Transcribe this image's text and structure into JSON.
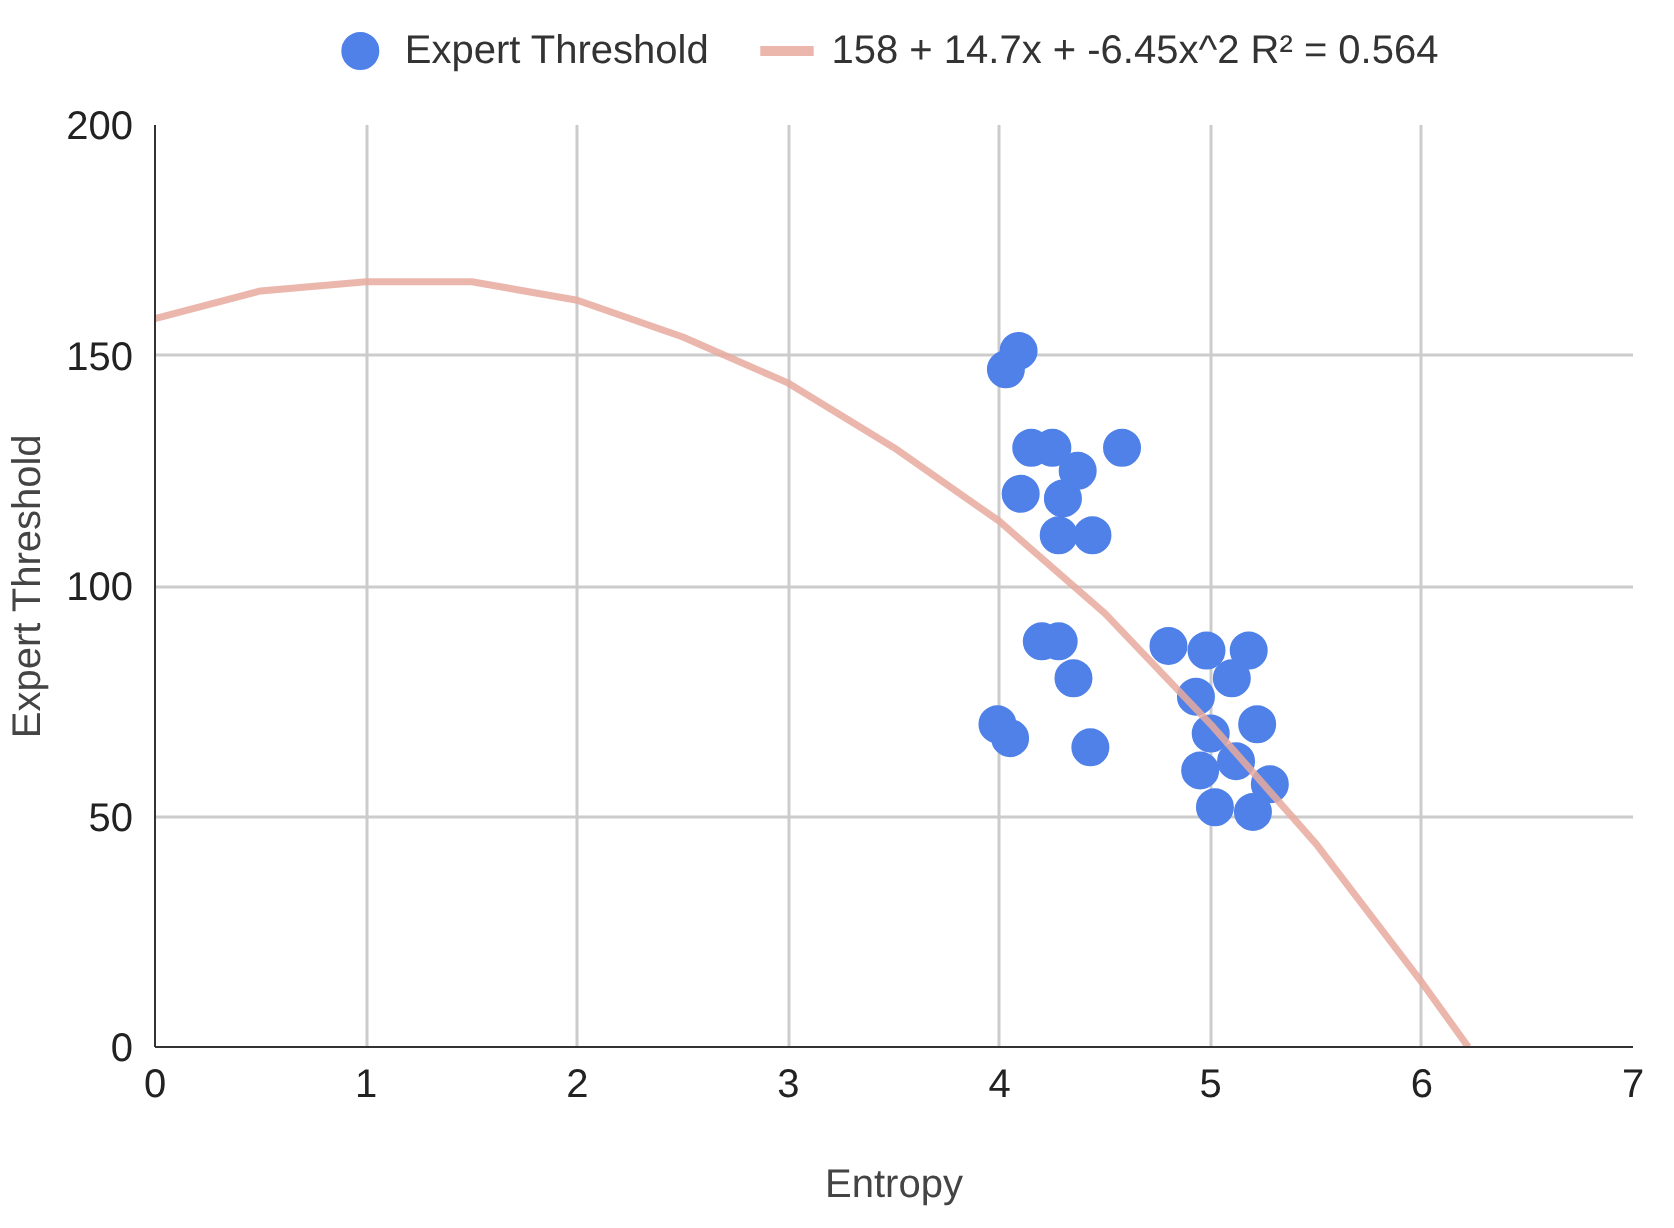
{
  "chart_data": {
    "type": "scatter",
    "xlabel": "Entropy",
    "ylabel": "Expert Threshold",
    "xlim": [
      0,
      7
    ],
    "ylim": [
      0,
      200
    ],
    "xticks": [
      0,
      1,
      2,
      3,
      4,
      5,
      6,
      7
    ],
    "yticks": [
      0,
      50,
      100,
      150,
      200
    ],
    "grid": true,
    "legend": "top",
    "series": [
      {
        "name": "Expert Threshold",
        "color": "#4f81e8",
        "marker": "circle",
        "x": [
          4.03,
          4.09,
          4.15,
          4.25,
          4.1,
          4.3,
          4.37,
          4.28,
          4.44,
          4.58,
          4.2,
          4.28,
          4.35,
          3.99,
          4.05,
          4.43,
          4.8,
          4.98,
          5.18,
          4.93,
          5.1,
          5.0,
          5.22,
          4.95,
          5.12,
          5.28,
          5.02,
          5.2
        ],
        "values": [
          147,
          151,
          130,
          130,
          120,
          119,
          125,
          111,
          111,
          130,
          88,
          88,
          80,
          70,
          67,
          65,
          87,
          86,
          86,
          76,
          80,
          68,
          70,
          60,
          62,
          57,
          52,
          51
        ]
      },
      {
        "name": "158 + 14.7x + -6.45x^2 R² = 0.564",
        "color": "#e8aa9f",
        "type": "line",
        "x": [
          0,
          0.5,
          1,
          1.5,
          2,
          2.5,
          3,
          3.5,
          4,
          4.5,
          5,
          5.5,
          6,
          6.22
        ],
        "values": [
          158,
          164,
          166,
          166,
          162,
          154,
          144,
          130,
          114,
          94,
          70,
          44,
          14,
          0
        ]
      }
    ]
  }
}
